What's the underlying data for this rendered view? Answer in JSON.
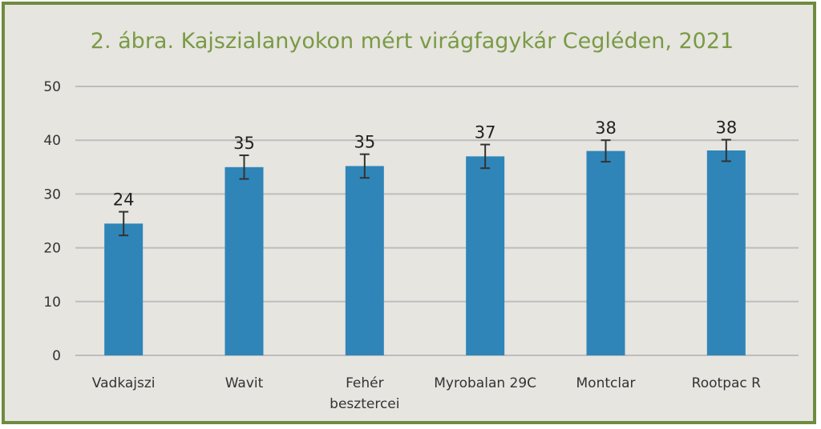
{
  "chart_data": {
    "type": "bar",
    "title": "2. ábra. Kajszialanyokon mért virágfagykár Cegléden, 2021",
    "categories": [
      [
        "Vadkajszi"
      ],
      [
        "Wavit"
      ],
      [
        "Fehér",
        "besztercei"
      ],
      [
        "Myrobalan 29C"
      ],
      [
        "Montclar"
      ],
      [
        "Rootpac R"
      ]
    ],
    "values": [
      24.5,
      35,
      35.2,
      37,
      38,
      38.1
    ],
    "data_labels": [
      "24",
      "35",
      "35",
      "37",
      "38",
      "38"
    ],
    "error": [
      2.2,
      2.2,
      2.2,
      2.2,
      2.0,
      2.0
    ],
    "ylim": [
      0,
      50
    ],
    "yticks": [
      "0",
      "10",
      "20",
      "30",
      "40",
      "50"
    ],
    "grid": true,
    "colors": {
      "bar": "#2f85b8",
      "grid": "#bdbdbd",
      "error": "#333333",
      "title": "#7a9a45",
      "border": "#6f8b3f"
    }
  }
}
